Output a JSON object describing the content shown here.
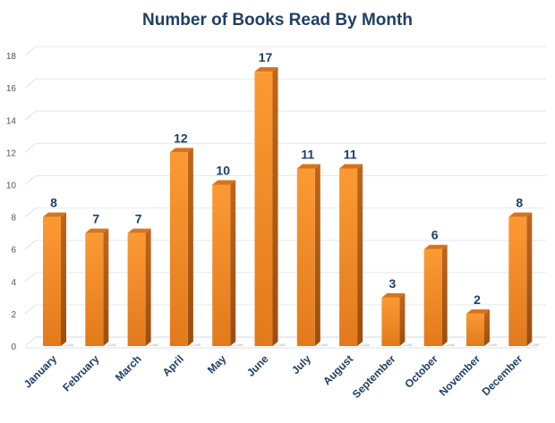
{
  "chart_data": {
    "type": "bar",
    "title": "Number of Books Read By Month",
    "xlabel": "",
    "ylabel": "",
    "categories": [
      "January",
      "February",
      "March",
      "April",
      "May",
      "June",
      "July",
      "August",
      "September",
      "October",
      "November",
      "December"
    ],
    "values": [
      8,
      7,
      7,
      12,
      10,
      17,
      11,
      11,
      3,
      6,
      2,
      8
    ],
    "ylim": [
      0,
      18
    ],
    "yticks": [
      0,
      2,
      4,
      6,
      8,
      10,
      12,
      14,
      16,
      18
    ],
    "grid": true,
    "legend": "none",
    "style": "3d-column",
    "bar_color": "#f0891f",
    "title_color": "#1f3e66"
  }
}
